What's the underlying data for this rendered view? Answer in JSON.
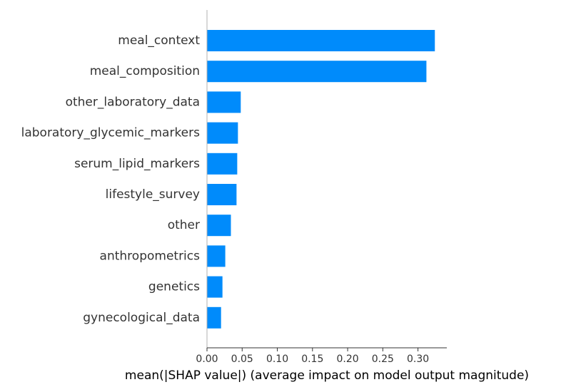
{
  "chart_data": {
    "type": "bar",
    "orientation": "horizontal",
    "categories": [
      "meal_context",
      "meal_composition",
      "other_laboratory_data",
      "laboratory_glycemic_markers",
      "serum_lipid_markers",
      "lifestyle_survey",
      "other",
      "anthropometrics",
      "genetics",
      "gynecological_data"
    ],
    "values": [
      0.324,
      0.312,
      0.048,
      0.044,
      0.043,
      0.042,
      0.034,
      0.026,
      0.022,
      0.02
    ],
    "xlabel": "mean(|SHAP value|) (average impact on model output magnitude)",
    "ylabel": "",
    "xlim": [
      0.0,
      0.341
    ],
    "xticks": [
      "0.00",
      "0.05",
      "0.10",
      "0.15",
      "0.20",
      "0.25",
      "0.30"
    ],
    "xtick_values": [
      0.0,
      0.05,
      0.1,
      0.15,
      0.2,
      0.25,
      0.3
    ],
    "bar_color": "#008bfb",
    "grid": false,
    "legend": "none"
  }
}
